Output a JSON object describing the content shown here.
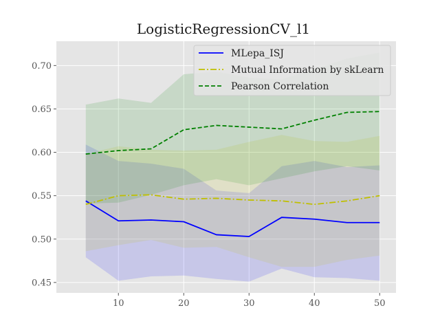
{
  "chart_data": {
    "type": "line",
    "title": "LogisticRegressionCV_l1",
    "xlabel": "",
    "ylabel": "",
    "xlim": [
      0.5,
      52.5
    ],
    "ylim": [
      0.438,
      0.728
    ],
    "x_ticks": [
      10,
      20,
      30,
      40,
      50
    ],
    "y_ticks": [
      0.45,
      0.5,
      0.55,
      0.6,
      0.65,
      0.7
    ],
    "x_tick_labels": [
      "10",
      "20",
      "30",
      "40",
      "50"
    ],
    "y_tick_labels": [
      "0.45",
      "0.50",
      "0.55",
      "0.60",
      "0.65",
      "0.70"
    ],
    "grid": true,
    "legend_position": "top-right",
    "x": [
      5,
      10,
      15,
      20,
      25,
      30,
      35,
      40,
      45,
      50
    ],
    "series": [
      {
        "name": "MLepa_ISJ",
        "color": "#0000ff",
        "line_style": "solid",
        "values": [
          0.544,
          0.521,
          0.522,
          0.52,
          0.505,
          0.503,
          0.525,
          0.523,
          0.519,
          0.519
        ],
        "upper": [
          0.609,
          0.59,
          0.587,
          0.581,
          0.556,
          0.553,
          0.584,
          0.59,
          0.583,
          0.585
        ],
        "lower": [
          0.479,
          0.452,
          0.457,
          0.458,
          0.454,
          0.451,
          0.466,
          0.456,
          0.455,
          0.452
        ]
      },
      {
        "name": "Mutual Information by skLearn",
        "color": "#bfbf00",
        "line_style": "dashdot",
        "values": [
          0.54,
          0.55,
          0.551,
          0.546,
          0.547,
          0.545,
          0.544,
          0.54,
          0.544,
          0.55
        ],
        "upper": [
          0.598,
          0.607,
          0.603,
          0.602,
          0.603,
          0.612,
          0.62,
          0.613,
          0.612,
          0.619
        ],
        "lower": [
          0.486,
          0.493,
          0.499,
          0.49,
          0.491,
          0.479,
          0.468,
          0.468,
          0.476,
          0.481
        ]
      },
      {
        "name": "Pearson Correlation",
        "color": "#008000",
        "line_style": "dashed",
        "values": [
          0.598,
          0.602,
          0.604,
          0.626,
          0.631,
          0.629,
          0.627,
          0.637,
          0.646,
          0.647
        ],
        "upper": [
          0.655,
          0.662,
          0.657,
          0.69,
          0.693,
          0.686,
          0.684,
          0.696,
          0.708,
          0.715
        ],
        "lower": [
          0.541,
          0.542,
          0.551,
          0.562,
          0.569,
          0.562,
          0.57,
          0.578,
          0.584,
          0.579
        ]
      }
    ]
  }
}
